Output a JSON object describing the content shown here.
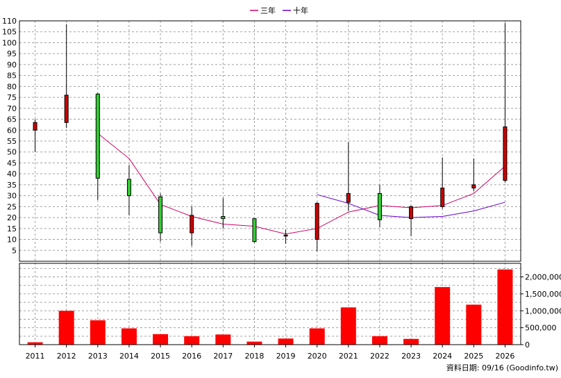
{
  "chart_data": {
    "type": "candlestick",
    "legend": {
      "placement": "top-center",
      "items": [
        {
          "label": "三年",
          "color": "#cc0066"
        },
        {
          "label": "十年",
          "color": "#6600cc"
        }
      ]
    },
    "footer": "資料日期: 09/16  (Goodinfo.tw)",
    "categories": [
      "2011",
      "2012",
      "2013",
      "2014",
      "2015",
      "2016",
      "2017",
      "2018",
      "2019",
      "2020",
      "2021",
      "2022",
      "2023",
      "2024",
      "2025",
      "2026"
    ],
    "price": {
      "ylim": [
        0,
        110
      ],
      "yticks": [
        5,
        10,
        15,
        20,
        25,
        30,
        35,
        40,
        45,
        50,
        55,
        60,
        65,
        70,
        75,
        80,
        85,
        90,
        95,
        100,
        105,
        110
      ],
      "grid": true,
      "candles": [
        {
          "year": "2011",
          "open": 60,
          "close": 63.5,
          "high": 65,
          "low": 50
        },
        {
          "year": "2012",
          "open": 63.5,
          "close": 76,
          "high": 108.5,
          "low": 61
        },
        {
          "year": "2013",
          "open": 76.5,
          "close": 38,
          "high": 77,
          "low": 28
        },
        {
          "year": "2014",
          "open": 37.5,
          "close": 30,
          "high": 44,
          "low": 21
        },
        {
          "year": "2015",
          "open": 29.5,
          "close": 13,
          "high": 31,
          "low": 9
        },
        {
          "year": "2016",
          "open": 13,
          "close": 21,
          "high": 25,
          "low": 7
        },
        {
          "year": "2017",
          "open": 20.5,
          "close": 19.5,
          "high": 29,
          "low": 15
        },
        {
          "year": "2018",
          "open": 19.5,
          "close": 9,
          "high": 19.5,
          "low": 8.5
        },
        {
          "year": "2019",
          "open": 12,
          "close": 12,
          "high": 14.5,
          "low": 8
        },
        {
          "year": "2020",
          "open": 10,
          "close": 26.5,
          "high": 27,
          "low": 4.5
        },
        {
          "year": "2021",
          "open": 27,
          "close": 31,
          "high": 54.5,
          "low": 23
        },
        {
          "year": "2022",
          "open": 31,
          "close": 19,
          "high": 35,
          "low": 15.5
        },
        {
          "year": "2023",
          "open": 19.5,
          "close": 25,
          "high": 25.5,
          "low": 11.5
        },
        {
          "year": "2024",
          "open": 25,
          "close": 33.5,
          "high": 47.5,
          "low": 24
        },
        {
          "year": "2025",
          "open": 33.5,
          "close": 35,
          "high": 47,
          "low": 32
        },
        {
          "year": "2026",
          "open": 37,
          "close": 61.5,
          "high": 109,
          "low": 36
        }
      ],
      "up_color": "#cc0000",
      "down_color": "#33cc33",
      "series": [
        {
          "name": "三年",
          "color": "#cc0066",
          "points": [
            [
              "2013",
              58.5
            ],
            [
              "2014",
              47
            ],
            [
              "2015",
              26
            ],
            [
              "2016",
              20.5
            ],
            [
              "2017",
              17
            ],
            [
              "2018",
              16
            ],
            [
              "2019",
              12.5
            ],
            [
              "2020",
              15
            ],
            [
              "2021",
              22.5
            ],
            [
              "2022",
              25.5
            ],
            [
              "2023",
              24.5
            ],
            [
              "2024",
              25.5
            ],
            [
              "2025",
              31
            ],
            [
              "2026",
              43.5
            ]
          ]
        },
        {
          "name": "十年",
          "color": "#6600cc",
          "points": [
            [
              "2020",
              30.5
            ],
            [
              "2021",
              26.5
            ],
            [
              "2022",
              21
            ],
            [
              "2023",
              20
            ],
            [
              "2024",
              20.5
            ],
            [
              "2025",
              23
            ],
            [
              "2026",
              27
            ]
          ]
        }
      ]
    },
    "volume": {
      "ylim": [
        0,
        2400000
      ],
      "yticks": [
        0,
        500000,
        1000000,
        1500000,
        2000000
      ],
      "ytick_labels": [
        "0",
        "500,000",
        "1,000,000",
        "1,500,000",
        "2,000,000"
      ],
      "color": "#ff0000",
      "values": [
        70000,
        1000000,
        720000,
        480000,
        310000,
        250000,
        300000,
        90000,
        180000,
        480000,
        1100000,
        250000,
        170000,
        1700000,
        1180000,
        2220000
      ]
    }
  }
}
